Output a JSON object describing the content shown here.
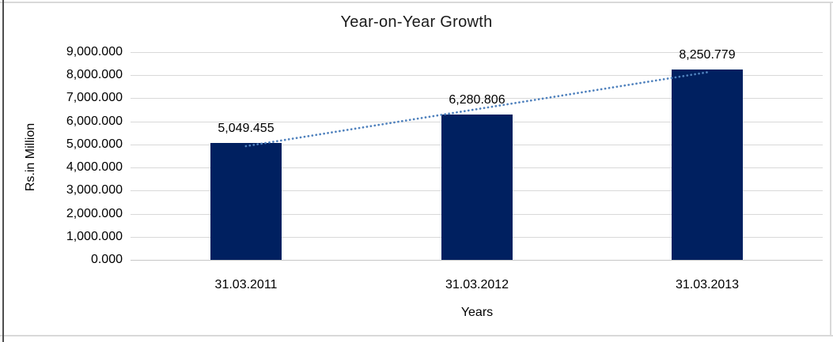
{
  "frame": {
    "border_color": "#d9d9d9",
    "left_line_color": "#4d4d4d"
  },
  "chart_data": {
    "type": "bar",
    "title": "Year-on-Year Growth",
    "xlabel": "Years",
    "ylabel": "Rs.in Million",
    "categories": [
      "31.03.2011",
      "31.03.2012",
      "31.03.2013"
    ],
    "values": [
      5049.455,
      6280.806,
      8250.779
    ],
    "data_labels": [
      "5,049.455",
      "6,280.806",
      "8,250.779"
    ],
    "ylim": [
      0,
      9000
    ],
    "ytick_step": 1000,
    "ytick_labels": [
      "0.000",
      "1,000.000",
      "2,000.000",
      "3,000.000",
      "4,000.000",
      "5,000.000",
      "6,000.000",
      "7,000.000",
      "8,000.000",
      "9,000.000"
    ],
    "grid": true,
    "grid_color": "#d9d9d9",
    "axis_line_color": "#c6c6c6",
    "bar_color": "#002060",
    "text_color": "#000000",
    "legend": "none",
    "trendline": {
      "fit": "linear",
      "style": "dotted",
      "color": "#4f81bd"
    }
  }
}
